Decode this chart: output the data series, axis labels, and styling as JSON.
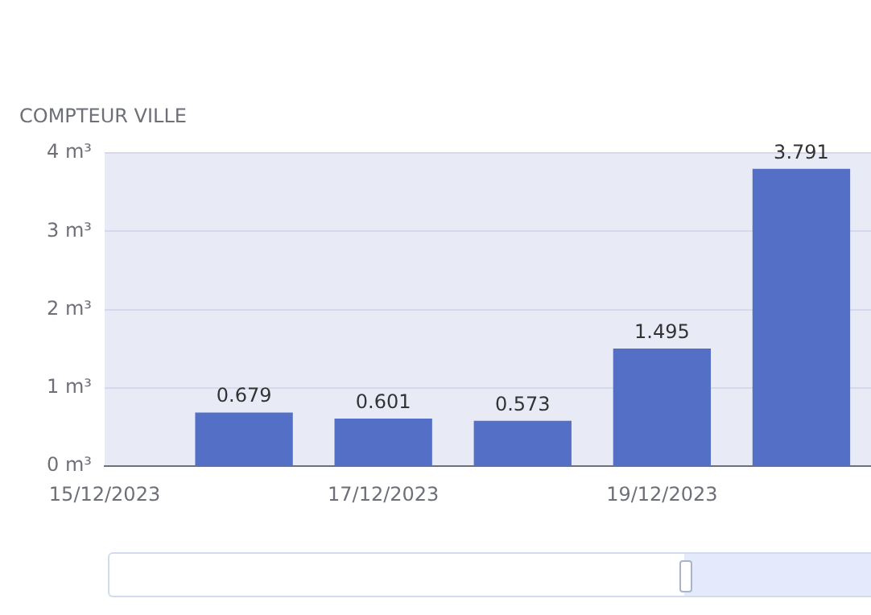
{
  "chart_data": {
    "type": "bar",
    "ylabel": "COMPTEUR VILLE",
    "x": [
      "2023-12-16",
      "2023-12-17",
      "2023-12-18",
      "2023-12-19",
      "2023-12-20"
    ],
    "values": [
      0.679,
      0.601,
      0.573,
      1.495,
      3.791
    ],
    "color": "#5470c6",
    "xlim": [
      "2023-12-15",
      "2023-12-20T12:00"
    ],
    "xticks": [
      {
        "value": "2023-12-15",
        "label": "15/12/2023"
      },
      {
        "value": "2023-12-17",
        "label": "17/12/2023"
      },
      {
        "value": "2023-12-19",
        "label": "19/12/2023"
      }
    ],
    "ylim": [
      0,
      4
    ],
    "yticks": [
      {
        "value": 0,
        "label": "0 m³"
      },
      {
        "value": 1,
        "label": "1 m³"
      },
      {
        "value": 2,
        "label": "2 m³"
      },
      {
        "value": 3,
        "label": "3 m³"
      },
      {
        "value": 4,
        "label": "4 m³"
      }
    ],
    "grid": "y",
    "data_labels": true,
    "legend": false
  }
}
